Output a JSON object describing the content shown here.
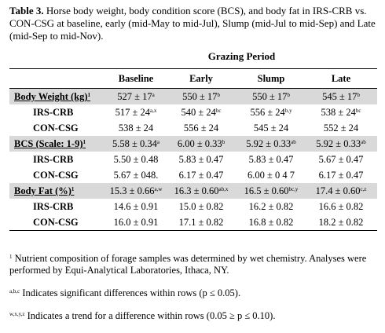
{
  "caption": {
    "label": "Table 3.",
    "text": "Horse body weight, body condition score (BCS), and body fat in IRS-CRB vs. CON-CSG at baseline, early (mid-May to mid-Jul), Slump (mid-Jul to mid-Sep) and Late (mid-Sep to mid-Nov)."
  },
  "table": {
    "group_header": "Grazing Period",
    "columns": [
      "Baseline",
      "Early",
      "Slump",
      "Late"
    ],
    "rows": [
      {
        "label": "Body Weight (kg)",
        "label_sup": "1",
        "group": true,
        "cells": [
          {
            "text": "527 ± 17",
            "sup": "a"
          },
          {
            "text": "550 ± 17",
            "sup": "b"
          },
          {
            "text": "550 ± 17",
            "sup": "b"
          },
          {
            "text": "545 ± 17",
            "sup": "b"
          }
        ]
      },
      {
        "label": "IRS-CRB",
        "cells": [
          {
            "text": "517 ± 24",
            "sup": "a,x"
          },
          {
            "text": "540 ± 24",
            "sup": "bc"
          },
          {
            "text": "556 ± 24",
            "sup": "b,y"
          },
          {
            "text": "538 ± 24",
            "sup": "bc"
          }
        ]
      },
      {
        "label": "CON-CSG",
        "cells": [
          {
            "text": "538 ± 24"
          },
          {
            "text": "556 ± 24"
          },
          {
            "text": "545 ± 24"
          },
          {
            "text": "552 ± 24"
          }
        ]
      },
      {
        "label": "BCS (Scale: 1-9)",
        "label_sup": "1",
        "group": true,
        "cells": [
          {
            "text": "5.58 ± 0.34",
            "sup": "a"
          },
          {
            "text": "6.00 ± 0.33",
            "sup": "b"
          },
          {
            "text": "5.92 ± 0.33",
            "sup": "ab"
          },
          {
            "text": "5.92 ± 0.33",
            "sup": "ab"
          }
        ]
      },
      {
        "label": "IRS-CRB",
        "cells": [
          {
            "text": "5.50 ± 0.48"
          },
          {
            "text": "5.83 ± 0.47"
          },
          {
            "text": "5.83 ± 0.47"
          },
          {
            "text": "5.67 ± 0.47"
          }
        ]
      },
      {
        "label": "CON-CSG",
        "cells": [
          {
            "text": "5.67 ± 048."
          },
          {
            "text": "6.17 ± 0.47"
          },
          {
            "text": "6.00 ± 0 4 7"
          },
          {
            "text": "6.17 ± 0.47"
          }
        ]
      },
      {
        "label": "Body Fat (%)",
        "label_sup": "1",
        "group": true,
        "cells": [
          {
            "text": "15.3 ± 0.66",
            "sup": "a,w"
          },
          {
            "text": "16.3 ± 0.60",
            "sup": "ab,x"
          },
          {
            "text": "16.5 ± 0.60",
            "sup": "bc,y"
          },
          {
            "text": "17.4 ± 0.60",
            "sup": "c,z"
          }
        ]
      },
      {
        "label": "IRS-CRB",
        "cells": [
          {
            "text": "14.6 ± 0.91"
          },
          {
            "text": "15.0 ± 0.82"
          },
          {
            "text": "16.2 ± 0.82"
          },
          {
            "text": "16.6 ± 0.82"
          }
        ]
      },
      {
        "label": "CON-CSG",
        "cells": [
          {
            "text": "16.0 ± 0.91"
          },
          {
            "text": "17.1 ± 0.82"
          },
          {
            "text": "16.8 ± 0.82"
          },
          {
            "text": "18.2 ± 0.82"
          }
        ]
      }
    ]
  },
  "footnotes": [
    {
      "mark": "1",
      "text": "Nutrient composition of forage samples was determined by wet chemistry. Analyses were performed by Equi-Analytical Laboratories, Ithaca, NY."
    },
    {
      "mark": "a,b,c",
      "text": "Indicates significant differences within rows (p ≤  0.05)."
    },
    {
      "mark": "w,x,y,z",
      "text": "Indicates a trend for a difference within rows (0.05 ≥ p ≤  0.10)."
    }
  ]
}
